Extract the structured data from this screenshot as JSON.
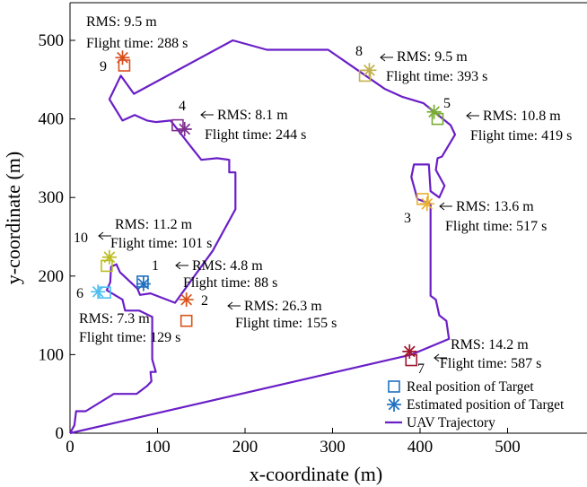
{
  "chart_data": {
    "type": "scatter",
    "xlabel": "x-coordinate (m)",
    "ylabel": "y-coordinate (m)",
    "xlim": [
      0,
      590
    ],
    "ylim": [
      0,
      520
    ],
    "xticks": [
      0,
      100,
      200,
      300,
      400,
      500
    ],
    "yticks": [
      0,
      100,
      200,
      300,
      400,
      500
    ],
    "grid": false,
    "legend_position": "bottom-right",
    "legend": {
      "real": "Real position of Target",
      "estimated": "Estimated position of Target",
      "trajectory": "UAV Trajectory"
    },
    "trajectory_color": "#6a1fc7",
    "trajectory": [
      [
        0,
        0
      ],
      [
        5,
        10
      ],
      [
        7,
        28
      ],
      [
        18,
        28
      ],
      [
        50,
        50
      ],
      [
        76,
        50
      ],
      [
        88,
        60
      ],
      [
        93,
        66
      ],
      [
        92,
        78
      ],
      [
        98,
        78
      ],
      [
        94,
        94
      ],
      [
        94,
        148
      ],
      [
        79,
        156
      ],
      [
        63,
        156
      ],
      [
        60,
        170
      ],
      [
        42,
        182
      ],
      [
        46,
        192
      ],
      [
        47,
        212
      ],
      [
        53,
        215
      ],
      [
        57,
        205
      ],
      [
        77,
        184
      ],
      [
        80,
        176
      ],
      [
        92,
        178
      ],
      [
        120,
        166
      ],
      [
        163,
        232
      ],
      [
        189,
        285
      ],
      [
        189,
        332
      ],
      [
        182,
        332
      ],
      [
        182,
        348
      ],
      [
        168,
        350
      ],
      [
        150,
        348
      ],
      [
        138,
        365
      ],
      [
        115,
        398
      ],
      [
        98,
        396
      ],
      [
        88,
        398
      ],
      [
        74,
        405
      ],
      [
        60,
        398
      ],
      [
        45,
        425
      ],
      [
        58,
        455
      ],
      [
        73,
        432
      ],
      [
        186,
        500
      ],
      [
        225,
        488
      ],
      [
        295,
        488
      ],
      [
        360,
        438
      ],
      [
        380,
        428
      ],
      [
        404,
        420
      ],
      [
        435,
        392
      ],
      [
        440,
        380
      ],
      [
        425,
        352
      ],
      [
        420,
        350
      ],
      [
        418,
        335
      ],
      [
        428,
        315
      ],
      [
        422,
        300
      ],
      [
        412,
        308
      ],
      [
        410,
        342
      ],
      [
        393,
        342
      ],
      [
        390,
        326
      ],
      [
        397,
        298
      ],
      [
        412,
        292
      ],
      [
        412,
        175
      ],
      [
        418,
        170
      ],
      [
        422,
        150
      ],
      [
        430,
        143
      ],
      [
        433,
        120
      ],
      [
        390,
        100
      ],
      [
        0,
        0
      ]
    ],
    "targets": [
      {
        "id": "1",
        "color": "#1f6fc0",
        "real": [
          83,
          193
        ],
        "estimated": [
          84,
          190
        ],
        "rms": "RMS: 4.8 m",
        "flight": "Flight time: 88 s"
      },
      {
        "id": "2",
        "color": "#d95319",
        "real": [
          133,
          143
        ],
        "estimated": [
          133,
          170
        ],
        "rms": "RMS: 26.3 m",
        "flight": "Flight time: 155 s"
      },
      {
        "id": "3",
        "color": "#e8b030",
        "real": [
          403,
          298
        ],
        "estimated": [
          408,
          292
        ],
        "rms": "RMS: 13.6 m",
        "flight": "Flight time: 517 s"
      },
      {
        "id": "4",
        "color": "#7e2f8e",
        "real": [
          123,
          392
        ],
        "estimated": [
          131,
          387
        ],
        "rms": "RMS: 8.1 m",
        "flight": "Flight time: 244 s"
      },
      {
        "id": "5",
        "color": "#77ac30",
        "real": [
          420,
          400
        ],
        "estimated": [
          416,
          409
        ],
        "rms": "RMS: 10.8 m",
        "flight": "Flight time: 419 s"
      },
      {
        "id": "6",
        "color": "#4dbeee",
        "real": [
          40,
          179
        ],
        "estimated": [
          32,
          180
        ],
        "rms": "RMS: 7.3 m",
        "flight": "Flight time: 129 s"
      },
      {
        "id": "7",
        "color": "#a2142f",
        "real": [
          390,
          93
        ],
        "estimated": [
          388,
          104
        ],
        "rms": "RMS: 14.2 m",
        "flight": "Flight time: 587 s"
      },
      {
        "id": "8",
        "color": "#c2b04a",
        "real": [
          337,
          455
        ],
        "estimated": [
          342,
          462
        ],
        "rms": "RMS: 9.5 m",
        "flight": "Flight time: 393 s"
      },
      {
        "id": "9",
        "color": "#d94f1e",
        "real": [
          62,
          468
        ],
        "estimated": [
          60,
          478
        ],
        "rms": "RMS: 9.5 m",
        "flight": "Flight time: 288 s"
      },
      {
        "id": "10",
        "color": "#bcbd22",
        "real": [
          42,
          213
        ],
        "estimated": [
          45,
          224
        ],
        "rms": "RMS: 11.2 m",
        "flight": "Flight time: 101 s"
      }
    ]
  }
}
